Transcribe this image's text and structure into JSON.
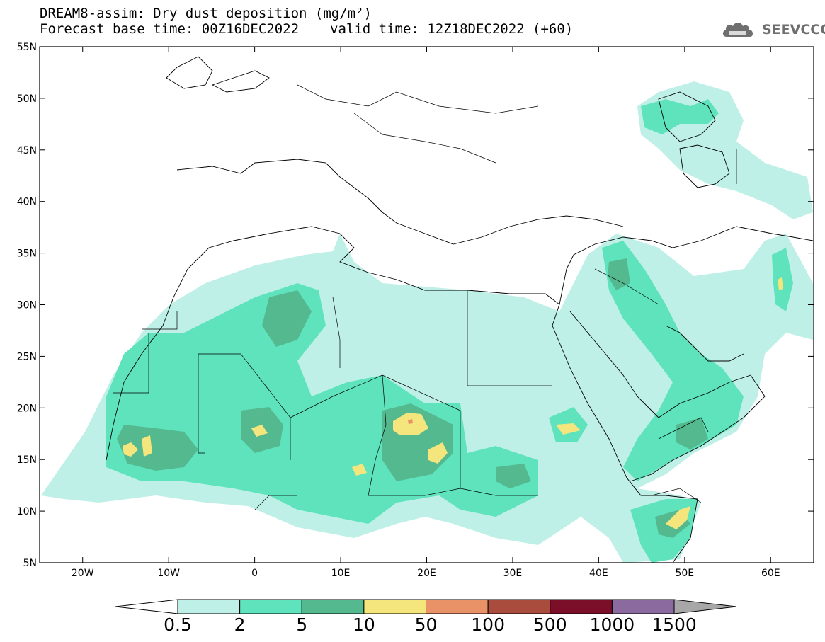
{
  "header": {
    "title": "DREAM8-assim: Dry dust deposition (mg/m²)",
    "base_time": "Forecast base time: 00Z16DEC2022",
    "valid_time": "valid time: 12Z18DEC2022 (+60)"
  },
  "logo": {
    "text": "SEEVCCC",
    "icon": "cloud-icon"
  },
  "map": {
    "lat_labels": [
      "55N",
      "50N",
      "45N",
      "40N",
      "35N",
      "30N",
      "25N",
      "20N",
      "15N",
      "10N",
      "5N"
    ],
    "lon_labels": [
      "20W",
      "10W",
      "0",
      "10E",
      "20E",
      "30E",
      "40E",
      "50E",
      "60E"
    ],
    "lat_values": [
      55,
      50,
      45,
      40,
      35,
      30,
      25,
      20,
      15,
      10,
      5
    ],
    "lon_values": [
      -20,
      -10,
      0,
      10,
      20,
      30,
      40,
      50,
      60
    ],
    "extent": {
      "lon_min": -25,
      "lon_max": 65,
      "lat_min": 5,
      "lat_max": 55
    },
    "colors": {
      "ocean": "#ffffff",
      "coastline": "#000000"
    }
  },
  "legend": {
    "labels": [
      "0.5",
      "2",
      "5",
      "10",
      "50",
      "100",
      "500",
      "1000",
      "1500"
    ],
    "colors": [
      "#ffffff",
      "#bff0e7",
      "#5ee3bd",
      "#55b98f",
      "#f4e67d",
      "#e99267",
      "#a94c3d",
      "#7b0f29",
      "#8b6aa0",
      "#a7a7a7"
    ]
  }
}
